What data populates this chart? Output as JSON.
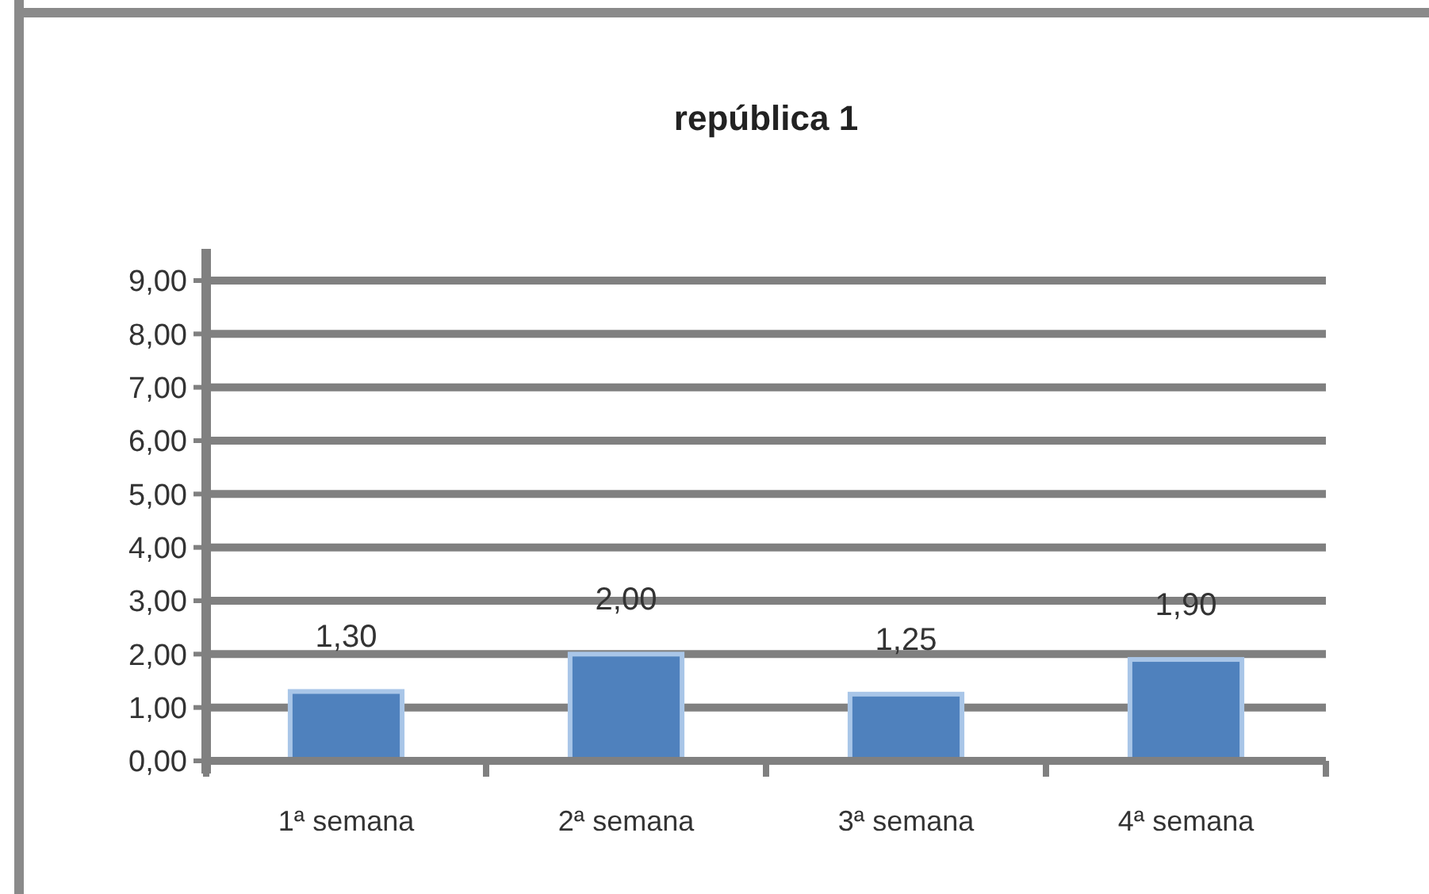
{
  "chart_data": {
    "type": "bar",
    "title": "república 1",
    "categories": [
      "1ª semana",
      "2ª semana",
      "3ª semana",
      "4ª semana"
    ],
    "values": [
      1.3,
      2.0,
      1.25,
      1.9
    ],
    "value_labels": [
      "1,30",
      "2,00",
      "1,25",
      "1,90"
    ],
    "color": "#4f81bd",
    "ylim": [
      0,
      9
    ],
    "yticks": [
      {
        "value": 0,
        "label": "0,00"
      },
      {
        "value": 1,
        "label": "1,00"
      },
      {
        "value": 2,
        "label": "2,00"
      },
      {
        "value": 3,
        "label": "3,00"
      },
      {
        "value": 4,
        "label": "4,00"
      },
      {
        "value": 5,
        "label": "5,00"
      },
      {
        "value": 6,
        "label": "6,00"
      },
      {
        "value": 7,
        "label": "7,00"
      },
      {
        "value": 8,
        "label": "8,00"
      },
      {
        "value": 9,
        "label": "9,00"
      }
    ],
    "grid": "y"
  }
}
